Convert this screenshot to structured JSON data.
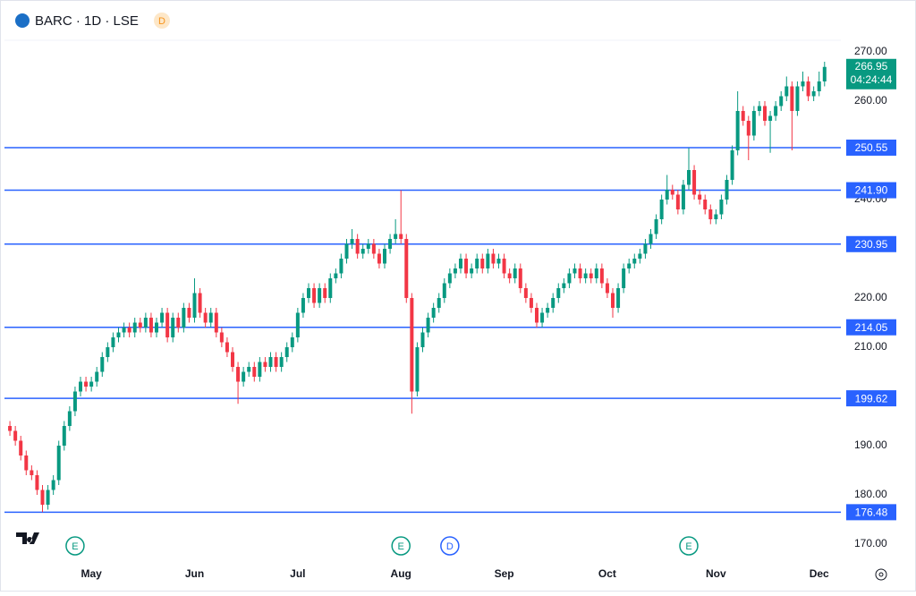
{
  "header": {
    "symbol": "BARC · 1D · LSE",
    "badge": "D"
  },
  "chart_data": {
    "type": "candlestick",
    "candles": [
      [
        194,
        195,
        192,
        193
      ],
      [
        193,
        194,
        190,
        191
      ],
      [
        191,
        192,
        187,
        188
      ],
      [
        188,
        189,
        184,
        185
      ],
      [
        185,
        186,
        183,
        184
      ],
      [
        184,
        185,
        180,
        181
      ],
      [
        181,
        182,
        176.5,
        178
      ],
      [
        178,
        182,
        177,
        181
      ],
      [
        181,
        184,
        180,
        183
      ],
      [
        183,
        191,
        182,
        190
      ],
      [
        190,
        195,
        189,
        194
      ],
      [
        194,
        198,
        193,
        197
      ],
      [
        197,
        202,
        196,
        201
      ],
      [
        201,
        204,
        200,
        203
      ],
      [
        203,
        204,
        201,
        202
      ],
      [
        202,
        204,
        201,
        203
      ],
      [
        203,
        206,
        202,
        205
      ],
      [
        205,
        209,
        204,
        208
      ],
      [
        208,
        211,
        207,
        210
      ],
      [
        210,
        213,
        209,
        212
      ],
      [
        212,
        214,
        211,
        213
      ],
      [
        213,
        215,
        212,
        214
      ],
      [
        214,
        215,
        212,
        213
      ],
      [
        213,
        216,
        212,
        215
      ],
      [
        215,
        216,
        213,
        214
      ],
      [
        214,
        217,
        213,
        216
      ],
      [
        216,
        217,
        212,
        213
      ],
      [
        213,
        216,
        212,
        215
      ],
      [
        215,
        218,
        214,
        217
      ],
      [
        217,
        218,
        211,
        212
      ],
      [
        212,
        217,
        211,
        216
      ],
      [
        216,
        217,
        213,
        214
      ],
      [
        214,
        219,
        213,
        218
      ],
      [
        218,
        219,
        215,
        216
      ],
      [
        216,
        224,
        215,
        221
      ],
      [
        221,
        222,
        216,
        217
      ],
      [
        217,
        218,
        214,
        215
      ],
      [
        215,
        218,
        214,
        217
      ],
      [
        217,
        218,
        212,
        213
      ],
      [
        213,
        214,
        210,
        211
      ],
      [
        211,
        212,
        208,
        209
      ],
      [
        209,
        210,
        205,
        206
      ],
      [
        206,
        207,
        198.5,
        203
      ],
      [
        203,
        206,
        202,
        205
      ],
      [
        205,
        207,
        204,
        206
      ],
      [
        206,
        207,
        203,
        204
      ],
      [
        204,
        208,
        203,
        207
      ],
      [
        207,
        208,
        205,
        206
      ],
      [
        206,
        209,
        205,
        208
      ],
      [
        208,
        209,
        205,
        206
      ],
      [
        206,
        209,
        205,
        208
      ],
      [
        208,
        211,
        207,
        210
      ],
      [
        210,
        213,
        209,
        212
      ],
      [
        212,
        218,
        211,
        217
      ],
      [
        217,
        221,
        216,
        220
      ],
      [
        220,
        223,
        219,
        222
      ],
      [
        222,
        223,
        218,
        219
      ],
      [
        219,
        223,
        218,
        222
      ],
      [
        222,
        223,
        219,
        220
      ],
      [
        220,
        225,
        219,
        224
      ],
      [
        224,
        226,
        223,
        225
      ],
      [
        225,
        229,
        224,
        228
      ],
      [
        228,
        232,
        227,
        231
      ],
      [
        231,
        234,
        230,
        232
      ],
      [
        232,
        233,
        228,
        229
      ],
      [
        229,
        231,
        228,
        230
      ],
      [
        230,
        232,
        229,
        231
      ],
      [
        231,
        232,
        228,
        229
      ],
      [
        229,
        230,
        226,
        227
      ],
      [
        227,
        231,
        226,
        230
      ],
      [
        230,
        233,
        229,
        232
      ],
      [
        232,
        236,
        231,
        233
      ],
      [
        233,
        241.9,
        231,
        232
      ],
      [
        232,
        233,
        219,
        220
      ],
      [
        220,
        221,
        196.5,
        201
      ],
      [
        201,
        211,
        200,
        210
      ],
      [
        210,
        214,
        209,
        213
      ],
      [
        213,
        217,
        212,
        216
      ],
      [
        216,
        219,
        215,
        218
      ],
      [
        218,
        221,
        217,
        220
      ],
      [
        220,
        224,
        219,
        223
      ],
      [
        223,
        226,
        222,
        225
      ],
      [
        225,
        227,
        224,
        226
      ],
      [
        226,
        229,
        225,
        228
      ],
      [
        228,
        229,
        224,
        225
      ],
      [
        225,
        227,
        224,
        226
      ],
      [
        226,
        229,
        225,
        228
      ],
      [
        228,
        229,
        225,
        226
      ],
      [
        226,
        230,
        225,
        229
      ],
      [
        229,
        230,
        226,
        227
      ],
      [
        227,
        229,
        226,
        228
      ],
      [
        228,
        229,
        224,
        225
      ],
      [
        225,
        226,
        223,
        224
      ],
      [
        224,
        227,
        223,
        226
      ],
      [
        226,
        227,
        221,
        222
      ],
      [
        222,
        223,
        219,
        220
      ],
      [
        220,
        221,
        217,
        218
      ],
      [
        218,
        219,
        214,
        215
      ],
      [
        215,
        218,
        214,
        217
      ],
      [
        217,
        219,
        216,
        218
      ],
      [
        218,
        221,
        217,
        220
      ],
      [
        220,
        223,
        219,
        222
      ],
      [
        222,
        224,
        221,
        223
      ],
      [
        223,
        226,
        222,
        225
      ],
      [
        225,
        227,
        224,
        226
      ],
      [
        226,
        227,
        223,
        224
      ],
      [
        224,
        226,
        223,
        225
      ],
      [
        225,
        226,
        223,
        224
      ],
      [
        224,
        227,
        223,
        226
      ],
      [
        226,
        227,
        222,
        223
      ],
      [
        223,
        224,
        220,
        221
      ],
      [
        221,
        222,
        216,
        218
      ],
      [
        218,
        223,
        217,
        222
      ],
      [
        222,
        227,
        221,
        226
      ],
      [
        226,
        228,
        225,
        227
      ],
      [
        227,
        229,
        226,
        228
      ],
      [
        228,
        230,
        227,
        229
      ],
      [
        229,
        232,
        228,
        231
      ],
      [
        231,
        234,
        230,
        233
      ],
      [
        233,
        237,
        232,
        236
      ],
      [
        236,
        241,
        235,
        240
      ],
      [
        240,
        245,
        239,
        242
      ],
      [
        242,
        243,
        240,
        241
      ],
      [
        241,
        242,
        237,
        238
      ],
      [
        238,
        244,
        237,
        243
      ],
      [
        243,
        250.5,
        242,
        246
      ],
      [
        246,
        247,
        240,
        241
      ],
      [
        241,
        242,
        239,
        240
      ],
      [
        240,
        241,
        237,
        238
      ],
      [
        238,
        239,
        235,
        236
      ],
      [
        236,
        238,
        235,
        237
      ],
      [
        237,
        241,
        236,
        240
      ],
      [
        240,
        245,
        239,
        244
      ],
      [
        244,
        251,
        243,
        250
      ],
      [
        250,
        262,
        249,
        258
      ],
      [
        258,
        259,
        255,
        256
      ],
      [
        256,
        257,
        248,
        253
      ],
      [
        253,
        259,
        252,
        258
      ],
      [
        258,
        260,
        257,
        259
      ],
      [
        259,
        260,
        255,
        256
      ],
      [
        256,
        258,
        249.5,
        257
      ],
      [
        257,
        260,
        256,
        259
      ],
      [
        259,
        262,
        258,
        261
      ],
      [
        261,
        265,
        260,
        263
      ],
      [
        263,
        264,
        250,
        258
      ],
      [
        258,
        264,
        257,
        263
      ],
      [
        263,
        266,
        262,
        264
      ],
      [
        264,
        265,
        260,
        261
      ],
      [
        261,
        263,
        260,
        262
      ],
      [
        262,
        266,
        261,
        264
      ],
      [
        264,
        268,
        263,
        266.95
      ]
    ],
    "up_color": "#089981",
    "down_color": "#f23645",
    "xlim": [
      -1,
      153
    ],
    "xticks": [
      {
        "value": 15,
        "label": "May"
      },
      {
        "value": 34,
        "label": "Jun"
      },
      {
        "value": 53,
        "label": "Jul"
      },
      {
        "value": 72,
        "label": "Aug"
      },
      {
        "value": 91,
        "label": "Sep"
      },
      {
        "value": 110,
        "label": "Oct"
      },
      {
        "value": 130,
        "label": "Nov"
      },
      {
        "value": 149,
        "label": "Dec"
      }
    ],
    "ylim": [
      168,
      274
    ],
    "yticks": [
      {
        "value": 270,
        "label": "270.00"
      },
      {
        "value": 260,
        "label": "260.00"
      },
      {
        "value": 240,
        "label": "240.00"
      },
      {
        "value": 230,
        "label": "230.00"
      },
      {
        "value": 220,
        "label": "220.00"
      },
      {
        "value": 210,
        "label": "210.00"
      },
      {
        "value": 190,
        "label": "190.00"
      },
      {
        "value": 180,
        "label": "180.00"
      },
      {
        "value": 170,
        "label": "170.00"
      }
    ],
    "levels": [
      {
        "value": 250.55,
        "label": "250.55"
      },
      {
        "value": 241.9,
        "label": "241.90"
      },
      {
        "value": 230.95,
        "label": "230.95"
      },
      {
        "value": 214.05,
        "label": "214.05"
      },
      {
        "value": 199.62,
        "label": "199.62"
      },
      {
        "value": 176.48,
        "label": "176.48"
      }
    ],
    "level_color": "#2962ff",
    "last_price": {
      "value": 266.95,
      "label": "266.95",
      "countdown": "04:24:44"
    },
    "events": [
      {
        "x": 12,
        "label": "E"
      },
      {
        "x": 72,
        "label": "E"
      },
      {
        "x": 81,
        "label": "D"
      },
      {
        "x": 125,
        "label": "E"
      }
    ]
  }
}
